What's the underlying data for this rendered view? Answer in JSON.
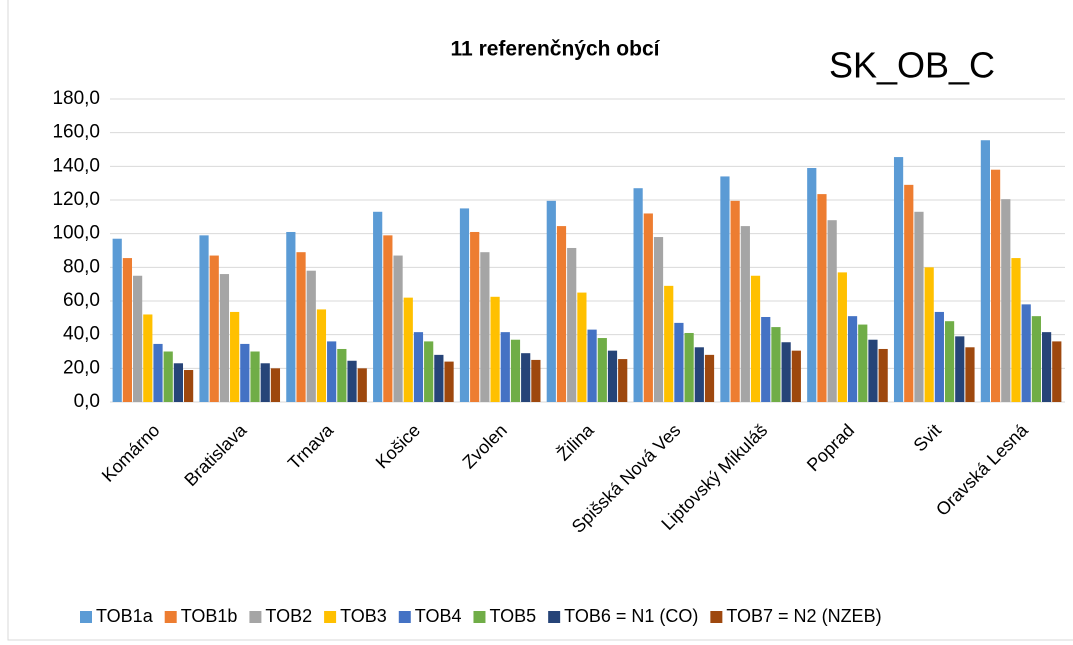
{
  "chart_data": {
    "type": "bar",
    "title": "11 referenčných obcí",
    "annotation": "SK_OB_C",
    "categories": [
      "Komárno",
      "Bratislava",
      "Trnava",
      "Košice",
      "Zvolen",
      "Žilina",
      "Spišská Nová Ves",
      "Liptovský Mikuláš",
      "Poprad",
      "Svit",
      "Oravská Lesná"
    ],
    "series": [
      {
        "name": "TOB1a",
        "color": "#5b9bd5",
        "values": [
          97,
          99,
          101,
          113,
          115,
          119.5,
          127,
          134,
          139,
          145.5,
          155.5
        ]
      },
      {
        "name": "TOB1b",
        "color": "#ed7d31",
        "values": [
          85.5,
          87,
          89,
          99,
          101,
          104.5,
          112,
          119.5,
          123.5,
          129,
          138
        ]
      },
      {
        "name": "TOB2",
        "color": "#a5a5a5",
        "values": [
          75,
          76,
          78,
          87,
          89,
          91.5,
          98,
          104.5,
          108,
          113,
          120.5
        ]
      },
      {
        "name": "TOB3",
        "color": "#ffc000",
        "values": [
          52,
          53.5,
          55,
          62,
          62.5,
          65,
          69,
          75,
          77,
          80,
          85.5
        ]
      },
      {
        "name": "TOB4",
        "color": "#4472c4",
        "values": [
          34.5,
          34.5,
          36,
          41.5,
          41.5,
          43,
          47,
          50.5,
          51,
          53.5,
          58
        ]
      },
      {
        "name": "TOB5",
        "color": "#70ad47",
        "values": [
          30,
          30,
          31.5,
          36,
          37,
          38,
          41,
          44.5,
          46,
          48,
          51
        ]
      },
      {
        "name": "TOB6 = N1 (CO)",
        "color": "#264478",
        "values": [
          23,
          23,
          24.5,
          28,
          29,
          30.5,
          32.5,
          35.5,
          37,
          39,
          41.5
        ]
      },
      {
        "name": "TOB7 = N2 (NZEB)",
        "color": "#9e480e",
        "values": [
          19,
          20,
          20,
          24,
          25,
          25.5,
          28,
          30.5,
          31.5,
          32.5,
          36
        ]
      }
    ],
    "ylim": [
      0,
      180
    ],
    "yticks": [
      {
        "value": 0,
        "label": "0,0"
      },
      {
        "value": 20,
        "label": "20,0"
      },
      {
        "value": 40,
        "label": "40,0"
      },
      {
        "value": 60,
        "label": "60,0"
      },
      {
        "value": 80,
        "label": "80,0"
      },
      {
        "value": 100,
        "label": "100,0"
      },
      {
        "value": 120,
        "label": "120,0"
      },
      {
        "value": 140,
        "label": "140,0"
      },
      {
        "value": 160,
        "label": "160,0"
      },
      {
        "value": 180,
        "label": "180,0"
      }
    ],
    "grid": true,
    "legend": "bottom"
  }
}
